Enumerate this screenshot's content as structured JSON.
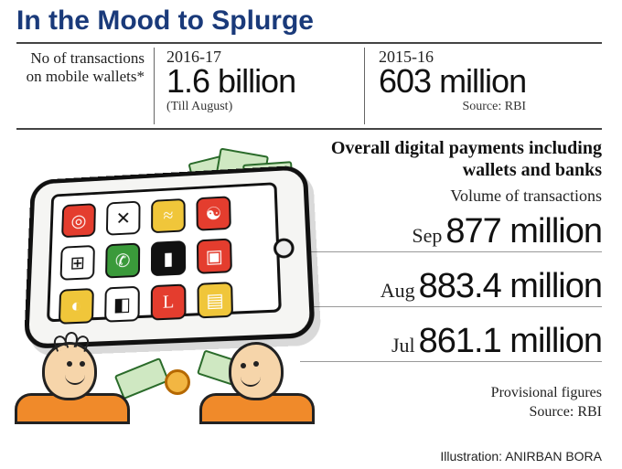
{
  "title": "In the Mood to Splurge",
  "label": "No of transactions on mobile wallets*",
  "years": [
    {
      "period": "2016-17",
      "value": "1.6 billion",
      "sub": "(Till August)"
    },
    {
      "period": "2015-16",
      "value": "603 million",
      "sub": "Source: RBI"
    }
  ],
  "overall_heading": "Overall digital payments including wallets and banks",
  "subhead": "Volume of transactions",
  "months": [
    {
      "m": "Sep",
      "v": "877 million"
    },
    {
      "m": "Aug",
      "v": "883.4 million"
    },
    {
      "m": "Jul",
      "v": "861.1 million"
    }
  ],
  "footnote_line1": "Provisional figures",
  "footnote_line2": "Source: RBI",
  "illustration_credit": "Illustration: ANIRBAN BORA",
  "colors": {
    "title": "#1a3a7a",
    "rule": "#444444",
    "text": "#111111",
    "person_shirt": "#f08a2a",
    "tablet_border": "#111111",
    "cash": "#cfe8c2",
    "coin": "#f2b642"
  },
  "app_icons": [
    {
      "bg": "#e43d2e",
      "glyph": "◎"
    },
    {
      "bg": "#ffffff",
      "glyph": "✕",
      "fg": "#111"
    },
    {
      "bg": "#f0c63a",
      "glyph": "≈"
    },
    {
      "bg": "#e43d2e",
      "glyph": "☯"
    },
    {
      "bg": "#ffffff",
      "glyph": "⊞",
      "fg": "#111"
    },
    {
      "bg": "#3a9a3a",
      "glyph": "✆"
    },
    {
      "bg": "#111111",
      "glyph": "▮"
    },
    {
      "bg": "#e43d2e",
      "glyph": "▣"
    },
    {
      "bg": "#f0c63a",
      "glyph": "◐"
    },
    {
      "bg": "#ffffff",
      "glyph": "◧",
      "fg": "#111"
    },
    {
      "bg": "#e43d2e",
      "glyph": "L"
    },
    {
      "bg": "#f0c63a",
      "glyph": "▤"
    }
  ]
}
